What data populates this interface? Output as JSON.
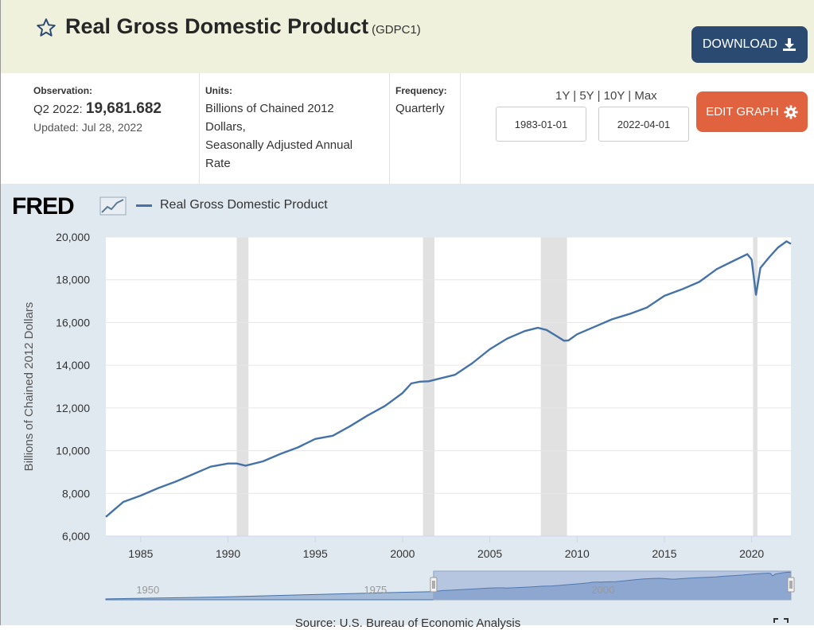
{
  "header": {
    "title": "Real Gross Domestic Product",
    "series_id": "(GDPC1)",
    "download_label": "DOWNLOAD"
  },
  "meta": {
    "observation_label": "Observation:",
    "observation_period": "Q2 2022:",
    "observation_value": "19,681.682",
    "updated": "Updated: Jul 28, 2022",
    "units_label": "Units:",
    "units_line1": "Billions of Chained 2012",
    "units_line2": "Dollars,",
    "units_line3": "Seasonally Adjusted Annual",
    "units_line4": "Rate",
    "frequency_label": "Frequency:",
    "frequency_value": "Quarterly"
  },
  "controls": {
    "range_1y": "1Y",
    "range_5y": "5Y",
    "range_10y": "10Y",
    "range_max": "Max",
    "sep": "|",
    "start_date": "1983-01-01",
    "end_date": "2022-04-01",
    "edit_graph_label": "EDIT GRAPH"
  },
  "brand": {
    "logo": "FRED"
  },
  "colors": {
    "series": "#4572a7",
    "recession": "#e1e1e1",
    "download_bg": "#2b4a72",
    "edit_bg": "#e0623e"
  },
  "chart_data": {
    "type": "line",
    "title": "Real Gross Domestic Product",
    "ylabel": "Billions of Chained 2012 Dollars",
    "xlabel": "",
    "xlim": [
      1983.0,
      2022.25
    ],
    "ylim": [
      6000,
      20000
    ],
    "yticks": [
      6000,
      8000,
      10000,
      12000,
      14000,
      16000,
      18000,
      20000
    ],
    "ytick_labels": [
      "6,000",
      "8,000",
      "10,000",
      "12,000",
      "14,000",
      "16,000",
      "18,000",
      "20,000"
    ],
    "xticks": [
      1985,
      1990,
      1995,
      2000,
      2005,
      2010,
      2015,
      2020
    ],
    "xtick_labels": [
      "1985",
      "1990",
      "1995",
      "2000",
      "2005",
      "2010",
      "2015",
      "2020"
    ],
    "recessions": [
      [
        1990.5,
        1991.17
      ],
      [
        2001.17,
        2001.83
      ],
      [
        2007.92,
        2009.42
      ],
      [
        2020.08,
        2020.33
      ]
    ],
    "series": [
      {
        "name": "Real Gross Domestic Product",
        "x": [
          1983.0,
          1984.0,
          1985.0,
          1986.0,
          1987.0,
          1988.0,
          1989.0,
          1990.0,
          1990.5,
          1991.0,
          1992.0,
          1993.0,
          1994.0,
          1995.0,
          1996.0,
          1997.0,
          1998.0,
          1999.0,
          2000.0,
          2000.5,
          2001.0,
          2001.5,
          2002.0,
          2003.0,
          2004.0,
          2005.0,
          2006.0,
          2007.0,
          2007.75,
          2008.25,
          2008.75,
          2009.25,
          2009.5,
          2010.0,
          2011.0,
          2012.0,
          2013.0,
          2014.0,
          2015.0,
          2016.0,
          2017.0,
          2018.0,
          2019.0,
          2019.75,
          2020.0,
          2020.25,
          2020.5,
          2021.0,
          2021.5,
          2022.0,
          2022.25
        ],
        "values": [
          6900,
          7600,
          7900,
          8250,
          8550,
          8900,
          9250,
          9400,
          9400,
          9300,
          9500,
          9850,
          10150,
          10550,
          10700,
          11150,
          11650,
          12100,
          12700,
          13150,
          13230,
          13250,
          13350,
          13550,
          14100,
          14750,
          15250,
          15600,
          15750,
          15650,
          15400,
          15150,
          15160,
          15450,
          15800,
          16150,
          16400,
          16700,
          17250,
          17550,
          17900,
          18500,
          18900,
          19200,
          18950,
          17300,
          18550,
          19050,
          19500,
          19800,
          19680
        ]
      }
    ],
    "navigator": {
      "tick_labels": [
        "1950",
        "1975",
        "2000"
      ],
      "tick_years": [
        1950,
        1975,
        2000
      ]
    }
  },
  "footer": {
    "source": "Source: U.S. Bureau of Economic Analysis"
  }
}
